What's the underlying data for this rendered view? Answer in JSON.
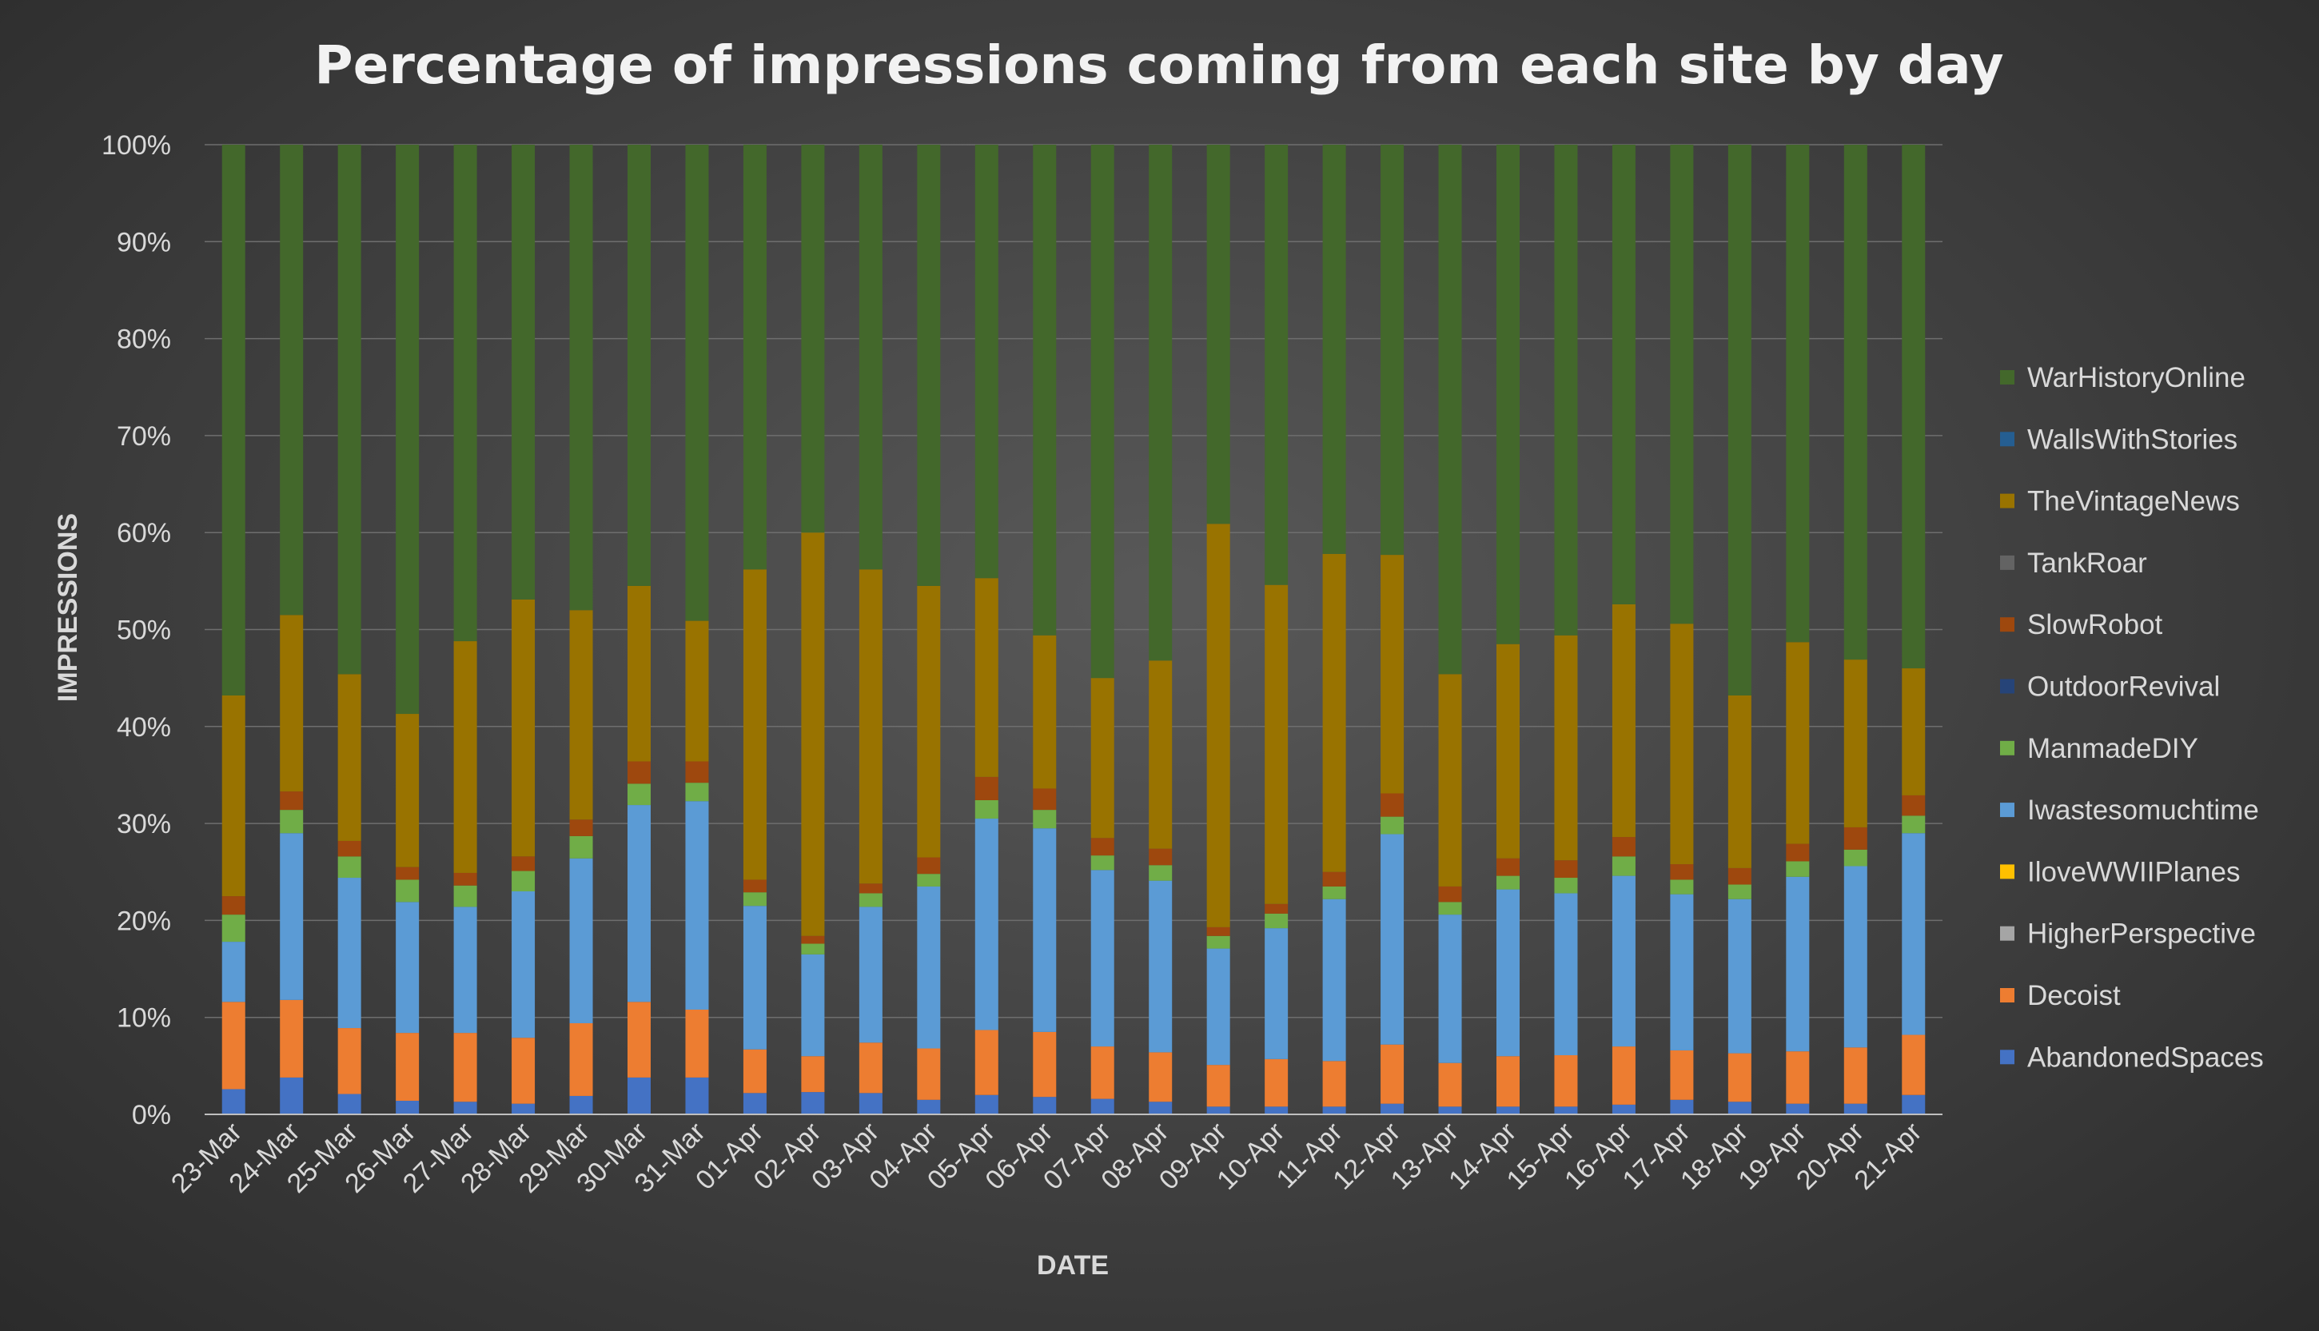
{
  "chart_data": {
    "type": "bar",
    "stacked": true,
    "percent_stacked": true,
    "title": "Percentage of impressions coming from each site by day",
    "xlabel": "DATE",
    "ylabel": "IMPRESSIONS",
    "ylim": [
      0,
      100
    ],
    "yticks": [
      "0%",
      "10%",
      "20%",
      "30%",
      "40%",
      "50%",
      "60%",
      "70%",
      "80%",
      "90%",
      "100%"
    ],
    "grid": true,
    "legend_position": "right",
    "categories": [
      "23-Mar",
      "24-Mar",
      "25-Mar",
      "26-Mar",
      "27-Mar",
      "28-Mar",
      "29-Mar",
      "30-Mar",
      "31-Mar",
      "01-Apr",
      "02-Apr",
      "03-Apr",
      "04-Apr",
      "05-Apr",
      "06-Apr",
      "07-Apr",
      "08-Apr",
      "09-Apr",
      "10-Apr",
      "11-Apr",
      "12-Apr",
      "13-Apr",
      "14-Apr",
      "15-Apr",
      "16-Apr",
      "17-Apr",
      "18-Apr",
      "19-Apr",
      "20-Apr",
      "21-Apr"
    ],
    "series": [
      {
        "name": "AbandonedSpaces",
        "color": "#4472c4",
        "values": [
          2.6,
          3.8,
          2.1,
          1.4,
          1.3,
          1.1,
          1.9,
          3.8,
          3.8,
          2.2,
          2.3,
          2.2,
          1.5,
          2.0,
          1.8,
          1.6,
          1.3,
          0.8,
          0.8,
          0.8,
          1.1,
          0.8,
          0.8,
          0.8,
          1.0,
          1.5,
          1.3,
          1.1,
          1.1,
          2.0
        ]
      },
      {
        "name": "Decoist",
        "color": "#ed7d31",
        "values": [
          9.0,
          8.0,
          6.8,
          7.0,
          7.1,
          6.8,
          7.5,
          7.8,
          7.0,
          4.5,
          3.7,
          5.2,
          5.3,
          6.7,
          6.7,
          5.4,
          5.1,
          4.3,
          4.9,
          4.7,
          6.1,
          4.5,
          5.2,
          5.3,
          6.0,
          5.1,
          5.0,
          5.4,
          5.8,
          6.2
        ]
      },
      {
        "name": "HigherPerspective",
        "color": "#a5a5a5",
        "values": [
          0,
          0,
          0,
          0,
          0,
          0,
          0,
          0,
          0,
          0,
          0,
          0,
          0,
          0,
          0,
          0,
          0,
          0,
          0,
          0,
          0,
          0,
          0,
          0,
          0,
          0,
          0,
          0,
          0,
          0
        ]
      },
      {
        "name": "IloveWWIIPlanes",
        "color": "#ffc000",
        "values": [
          0,
          0,
          0,
          0,
          0,
          0,
          0,
          0,
          0,
          0,
          0,
          0,
          0,
          0,
          0,
          0,
          0,
          0,
          0,
          0,
          0,
          0,
          0,
          0,
          0,
          0,
          0,
          0,
          0,
          0
        ]
      },
      {
        "name": "Iwastesomuchtime",
        "color": "#5b9bd5",
        "values": [
          6.2,
          17.2,
          15.5,
          13.5,
          13.0,
          15.1,
          17.0,
          20.3,
          21.5,
          14.8,
          10.5,
          14.0,
          16.7,
          21.8,
          21.0,
          18.2,
          17.7,
          12.0,
          13.5,
          16.7,
          21.7,
          15.3,
          17.2,
          16.7,
          17.6,
          16.1,
          15.9,
          18.0,
          18.7,
          20.8
        ]
      },
      {
        "name": "ManmadeDIY",
        "color": "#70ad47",
        "values": [
          2.8,
          2.4,
          2.2,
          2.3,
          2.2,
          2.1,
          2.3,
          2.2,
          1.9,
          1.4,
          1.1,
          1.4,
          1.3,
          1.9,
          1.9,
          1.5,
          1.6,
          1.3,
          1.5,
          1.3,
          1.8,
          1.3,
          1.4,
          1.6,
          2.0,
          1.5,
          1.5,
          1.6,
          1.7,
          1.8
        ]
      },
      {
        "name": "OutdoorRevival",
        "color": "#264478",
        "values": [
          0,
          0,
          0,
          0,
          0,
          0,
          0,
          0,
          0,
          0,
          0,
          0,
          0,
          0,
          0,
          0,
          0,
          0,
          0,
          0,
          0,
          0,
          0,
          0,
          0,
          0,
          0,
          0,
          0,
          0
        ]
      },
      {
        "name": "SlowRobot",
        "color": "#9e480e",
        "values": [
          1.9,
          1.9,
          1.6,
          1.3,
          1.3,
          1.5,
          1.7,
          2.3,
          2.2,
          1.3,
          0.8,
          1.0,
          1.7,
          2.4,
          2.2,
          1.8,
          1.7,
          0.9,
          1.0,
          1.5,
          2.4,
          1.6,
          1.8,
          1.8,
          2.0,
          1.6,
          1.7,
          1.8,
          2.3,
          2.1
        ]
      },
      {
        "name": "TankRoar",
        "color": "#636363",
        "values": [
          0,
          0,
          0,
          0,
          0,
          0,
          0,
          0,
          0,
          0,
          0,
          0,
          0,
          0,
          0,
          0,
          0,
          0,
          0,
          0,
          0,
          0,
          0,
          0,
          0,
          0,
          0,
          0,
          0,
          0
        ]
      },
      {
        "name": "TheVintageNews",
        "color": "#997300",
        "values": [
          20.7,
          18.2,
          17.2,
          15.8,
          23.9,
          26.5,
          21.6,
          18.1,
          14.5,
          32.0,
          41.6,
          32.4,
          28.0,
          20.5,
          15.8,
          16.5,
          19.4,
          41.6,
          32.9,
          32.8,
          24.6,
          21.9,
          22.1,
          23.2,
          24.0,
          24.8,
          17.8,
          20.8,
          17.3,
          13.1
        ]
      },
      {
        "name": "WallsWithStories",
        "color": "#255e91",
        "values": [
          0,
          0,
          0,
          0,
          0,
          0,
          0,
          0,
          0,
          0,
          0,
          0,
          0,
          0,
          0,
          0,
          0,
          0,
          0,
          0,
          0,
          0,
          0,
          0,
          0,
          0,
          0,
          0,
          0,
          0
        ]
      },
      {
        "name": "WarHistoryOnline",
        "color": "#43682b",
        "values": [
          56.8,
          48.5,
          54.6,
          58.7,
          51.2,
          46.9,
          48.0,
          45.5,
          49.1,
          43.8,
          40.0,
          43.8,
          45.5,
          44.7,
          50.6,
          55.0,
          53.2,
          39.1,
          45.4,
          42.2,
          42.3,
          54.6,
          51.5,
          50.6,
          47.4,
          49.4,
          56.8,
          51.3,
          53.1,
          54.0
        ]
      }
    ]
  }
}
